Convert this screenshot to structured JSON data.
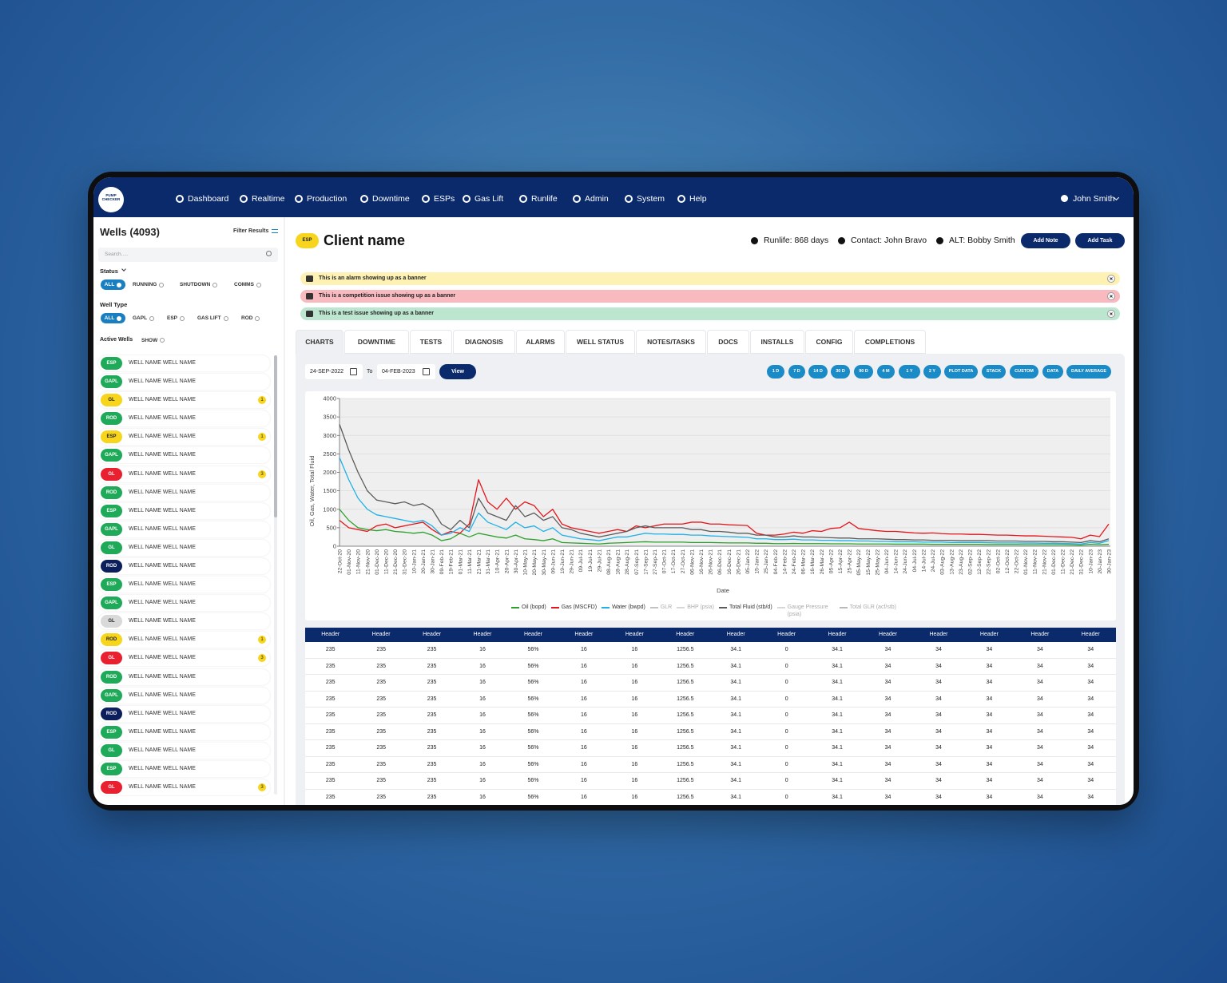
{
  "nav": {
    "logo": "PUMP CHECKER",
    "items": [
      "Dashboard",
      "Realtime",
      "Production",
      "Downtime",
      "ESPs",
      "Gas Lift",
      "Runlife",
      "Admin",
      "System",
      "Help"
    ],
    "user": "John Smith"
  },
  "sidebar": {
    "title": "Wells (4093)",
    "filter": "Filter Results",
    "search_placeholder": "Search.....",
    "status_label": "Status",
    "status_options": [
      "ALL",
      "RUNNING",
      "SHUTDOWN",
      "COMMS"
    ],
    "well_type_label": "Well Type",
    "well_type_options": [
      "ALL",
      "GAPL",
      "ESP",
      "GAS LIFT",
      "ROD"
    ],
    "active_wells_label": "Active Wells",
    "active_wells_option": "SHOW",
    "wells": [
      {
        "type": "ESP",
        "color": "#1faa59",
        "name": "WELL NAME WELL NAME"
      },
      {
        "type": "GAPL",
        "color": "#1faa59",
        "name": "WELL NAME WELL NAME"
      },
      {
        "type": "GL",
        "color": "#f7d51d",
        "name": "WELL NAME WELL NAME",
        "alerts": 1
      },
      {
        "type": "ROD",
        "color": "#1faa59",
        "name": "WELL NAME WELL NAME"
      },
      {
        "type": "ESP",
        "color": "#f7d51d",
        "name": "WELL NAME WELL NAME",
        "alerts": 1
      },
      {
        "type": "GAPL",
        "color": "#1faa59",
        "name": "WELL NAME WELL NAME"
      },
      {
        "type": "GL",
        "color": "#e8202f",
        "name": "WELL NAME WELL NAME",
        "alerts": 3
      },
      {
        "type": "ROD",
        "color": "#1faa59",
        "name": "WELL NAME WELL NAME"
      },
      {
        "type": "ESP",
        "color": "#1faa59",
        "name": "WELL NAME WELL NAME"
      },
      {
        "type": "GAPL",
        "color": "#1faa59",
        "name": "WELL NAME WELL NAME"
      },
      {
        "type": "GL",
        "color": "#1faa59",
        "name": "WELL NAME WELL NAME"
      },
      {
        "type": "ROD",
        "color": "#0b1f5c",
        "name": "WELL NAME WELL NAME"
      },
      {
        "type": "ESP",
        "color": "#1faa59",
        "name": "WELL NAME WELL NAME"
      },
      {
        "type": "GAPL",
        "color": "#1faa59",
        "name": "WELL NAME WELL NAME"
      },
      {
        "type": "GL",
        "color": "#d9d9d9",
        "name": "WELL NAME WELL NAME"
      },
      {
        "type": "ROD",
        "color": "#f7d51d",
        "name": "WELL NAME WELL NAME",
        "alerts": 1
      },
      {
        "type": "GL",
        "color": "#e8202f",
        "name": "WELL NAME WELL NAME",
        "alerts": 3
      },
      {
        "type": "ROD",
        "color": "#1faa59",
        "name": "WELL NAME WELL NAME"
      },
      {
        "type": "GAPL",
        "color": "#1faa59",
        "name": "WELL NAME WELL NAME"
      },
      {
        "type": "ROD",
        "color": "#0b1f5c",
        "name": "WELL NAME WELL NAME"
      },
      {
        "type": "ESP",
        "color": "#1faa59",
        "name": "WELL NAME WELL NAME"
      },
      {
        "type": "GL",
        "color": "#1faa59",
        "name": "WELL NAME WELL NAME"
      },
      {
        "type": "ESP",
        "color": "#1faa59",
        "name": "WELL NAME WELL NAME"
      },
      {
        "type": "GL",
        "color": "#e8202f",
        "name": "WELL NAME WELL NAME",
        "alerts": 3
      }
    ]
  },
  "header": {
    "badge": "ESP",
    "client": "Client name",
    "runlife": "Runlife: 868 days",
    "contact": "Contact: John Bravo",
    "alt": "ALT: Bobby Smith",
    "buttons": [
      "Add Note",
      "Add Task"
    ]
  },
  "banners": [
    {
      "text": "This is an alarm showing up as a banner",
      "color": "#fdf2b3"
    },
    {
      "text": "This is a competition issue showing up as a banner",
      "color": "#f8b9bf"
    },
    {
      "text": "This is a test issue showing up as a banner",
      "color": "#bce6d0"
    }
  ],
  "tabs": [
    "CHARTS",
    "DOWNTIME",
    "TESTS",
    "DIAGNOSIS",
    "ALARMS",
    "WELL STATUS",
    "NOTES/TASKS",
    "DOCS",
    "INSTALLS",
    "CONFIG",
    "COMPLETIONS"
  ],
  "controls": {
    "from": "24-SEP-2022",
    "to_label": "To",
    "to": "04-FEB-2023",
    "view": "View",
    "ranges": [
      "1 D",
      "7 D",
      "14 D",
      "30 D",
      "90 D",
      "4 M",
      "1 Y",
      "2 Y",
      "PLOT DATA",
      "STACK",
      "CUSTOM",
      "DATA",
      "DAILY AVERAGE"
    ]
  },
  "chart_data": {
    "type": "line",
    "xlabel": "Date",
    "ylabel": "Oil, Gas, Water, Total Fluid",
    "ylim": [
      0,
      4000
    ],
    "yticks": [
      0,
      500,
      1000,
      1500,
      2000,
      2500,
      3000,
      3500,
      4000
    ],
    "grid": true,
    "categories": [
      "22-Oct-20",
      "01-Nov-20",
      "11-Nov-20",
      "21-Nov-20",
      "01-Dec-20",
      "11-Dec-20",
      "21-Dec-20",
      "31-Dec-20",
      "10-Jan-21",
      "20-Jan-21",
      "30-Jan-21",
      "09-Feb-21",
      "19-Feb-21",
      "01-Mar-21",
      "11-Mar-21",
      "21-Mar-21",
      "31-Mar-21",
      "10-Apr-21",
      "20-Apr-21",
      "30-Apr-21",
      "10-May-21",
      "20-May-21",
      "30-May-21",
      "09-Jun-21",
      "19-Jun-21",
      "29-Jun-21",
      "09-Jul-21",
      "19-Jul-21",
      "29-Jul-21",
      "08-Aug-21",
      "18-Aug-21",
      "28-Aug-21",
      "07-Sep-21",
      "17-Sep-21",
      "27-Sep-21",
      "07-Oct-21",
      "17-Oct-21",
      "27-Oct-21",
      "06-Nov-21",
      "16-Nov-21",
      "26-Nov-21",
      "06-Dec-21",
      "16-Dec-21",
      "26-Dec-21",
      "05-Jan-22",
      "15-Jan-22",
      "25-Jan-22",
      "04-Feb-22",
      "14-Feb-22",
      "24-Feb-22",
      "06-Mar-22",
      "16-Mar-22",
      "26-Mar-22",
      "05-Apr-22",
      "15-Apr-22",
      "25-Apr-22",
      "05-May-22",
      "15-May-22",
      "25-May-22",
      "04-Jun-22",
      "14-Jun-22",
      "24-Jun-22",
      "04-Jul-22",
      "14-Jul-22",
      "24-Jul-22",
      "03-Aug-22",
      "13-Aug-22",
      "23-Aug-22",
      "02-Sep-22",
      "12-Sep-22",
      "22-Sep-22",
      "02-Oct-22",
      "12-Oct-22",
      "22-Oct-22",
      "01-Nov-22",
      "11-Nov-22",
      "21-Nov-22",
      "01-Dec-22",
      "11-Dec-22",
      "21-Dec-22",
      "31-Dec-22",
      "10-Jan-23",
      "20-Jan-23",
      "30-Jan-23"
    ],
    "series": [
      {
        "name": "Oil (bopd)",
        "color": "#2ca02c",
        "values": [
          1000,
          700,
          500,
          450,
          420,
          450,
          400,
          380,
          350,
          380,
          300,
          150,
          200,
          350,
          250,
          350,
          300,
          250,
          220,
          300,
          200,
          180,
          150,
          200,
          100,
          90,
          80,
          70,
          60,
          80,
          90,
          100,
          110,
          120,
          110,
          110,
          110,
          110,
          100,
          100,
          100,
          95,
          90,
          90,
          90,
          80,
          80,
          70,
          70,
          75,
          70,
          70,
          70,
          65,
          65,
          65,
          60,
          60,
          60,
          60,
          55,
          55,
          55,
          55,
          50,
          50,
          50,
          50,
          50,
          50,
          45,
          45,
          45,
          45,
          40,
          40,
          40,
          40,
          40,
          35,
          30,
          50,
          40,
          50
        ]
      },
      {
        "name": "Gas (MSCFD)",
        "color": "#e3161c",
        "values": [
          700,
          500,
          450,
          400,
          550,
          600,
          500,
          550,
          600,
          650,
          450,
          300,
          400,
          350,
          600,
          1800,
          1200,
          1000,
          1300,
          1000,
          1200,
          1100,
          800,
          1000,
          600,
          500,
          450,
          400,
          350,
          400,
          450,
          400,
          550,
          500,
          550,
          600,
          600,
          600,
          650,
          650,
          600,
          600,
          580,
          570,
          560,
          350,
          300,
          300,
          330,
          380,
          350,
          420,
          400,
          480,
          500,
          650,
          480,
          450,
          420,
          400,
          400,
          380,
          360,
          350,
          360,
          340,
          330,
          330,
          320,
          320,
          310,
          300,
          300,
          290,
          280,
          280,
          270,
          260,
          250,
          240,
          200,
          300,
          260,
          600
        ]
      },
      {
        "name": "Water (bwpd)",
        "color": "#1fb1e6",
        "values": [
          2400,
          1800,
          1300,
          1000,
          850,
          800,
          750,
          700,
          650,
          700,
          550,
          300,
          350,
          500,
          400,
          900,
          650,
          550,
          450,
          650,
          500,
          550,
          400,
          500,
          300,
          250,
          200,
          180,
          150,
          200,
          250,
          250,
          300,
          350,
          330,
          330,
          320,
          320,
          300,
          300,
          280,
          270,
          260,
          250,
          240,
          200,
          200,
          180,
          180,
          190,
          170,
          170,
          160,
          160,
          150,
          150,
          140,
          140,
          130,
          130,
          120,
          120,
          120,
          110,
          110,
          110,
          100,
          100,
          100,
          100,
          95,
          90,
          90,
          90,
          85,
          85,
          80,
          80,
          75,
          70,
          60,
          100,
          80,
          150
        ]
      },
      {
        "name": "GLR",
        "color": "#9a9a9a",
        "visible": false
      },
      {
        "name": "BHP (psia)",
        "color": "#bdbdbd",
        "visible": false
      },
      {
        "name": "Total Fluid (stb/d)",
        "color": "#5c5c5c",
        "values": [
          3300,
          2600,
          2000,
          1500,
          1250,
          1200,
          1150,
          1200,
          1100,
          1150,
          1000,
          600,
          450,
          700,
          500,
          1300,
          900,
          800,
          700,
          1100,
          800,
          900,
          700,
          800,
          500,
          450,
          350,
          300,
          250,
          300,
          350,
          400,
          500,
          550,
          500,
          500,
          500,
          500,
          450,
          450,
          400,
          400,
          380,
          350,
          350,
          300,
          300,
          250,
          250,
          280,
          250,
          250,
          240,
          230,
          220,
          220,
          200,
          200,
          200,
          190,
          180,
          180,
          170,
          170,
          160,
          160,
          160,
          150,
          150,
          150,
          150,
          140,
          140,
          140,
          130,
          130,
          130,
          120,
          120,
          110,
          100,
          150,
          120,
          200
        ]
      },
      {
        "name": "Gauge Pressure (psia)",
        "color": "#bdbdbd",
        "visible": false
      },
      {
        "name": "Total GLR (acf/stb)",
        "color": "#8a8a8a",
        "visible": false
      }
    ]
  },
  "table": {
    "headers": [
      "Header",
      "Header",
      "Header",
      "Header",
      "Header",
      "Header",
      "Header",
      "Header",
      "Header",
      "Header",
      "Header",
      "Header",
      "Header",
      "Header",
      "Header",
      "Header"
    ],
    "rows": [
      [
        235,
        235,
        235,
        16,
        "56%",
        16,
        16,
        1256.5,
        34.1,
        0,
        34.1,
        34,
        34,
        34,
        34,
        34
      ],
      [
        235,
        235,
        235,
        16,
        "56%",
        16,
        16,
        1256.5,
        34.1,
        0,
        34.1,
        34,
        34,
        34,
        34,
        34
      ],
      [
        235,
        235,
        235,
        16,
        "56%",
        16,
        16,
        1256.5,
        34.1,
        0,
        34.1,
        34,
        34,
        34,
        34,
        34
      ],
      [
        235,
        235,
        235,
        16,
        "56%",
        16,
        16,
        1256.5,
        34.1,
        0,
        34.1,
        34,
        34,
        34,
        34,
        34
      ],
      [
        235,
        235,
        235,
        16,
        "56%",
        16,
        16,
        1256.5,
        34.1,
        0,
        34.1,
        34,
        34,
        34,
        34,
        34
      ],
      [
        235,
        235,
        235,
        16,
        "56%",
        16,
        16,
        1256.5,
        34.1,
        0,
        34.1,
        34,
        34,
        34,
        34,
        34
      ],
      [
        235,
        235,
        235,
        16,
        "56%",
        16,
        16,
        1256.5,
        34.1,
        0,
        34.1,
        34,
        34,
        34,
        34,
        34
      ],
      [
        235,
        235,
        235,
        16,
        "56%",
        16,
        16,
        1256.5,
        34.1,
        0,
        34.1,
        34,
        34,
        34,
        34,
        34
      ],
      [
        235,
        235,
        235,
        16,
        "56%",
        16,
        16,
        1256.5,
        34.1,
        0,
        34.1,
        34,
        34,
        34,
        34,
        34
      ],
      [
        235,
        235,
        235,
        16,
        "56%",
        16,
        16,
        1256.5,
        34.1,
        0,
        34.1,
        34,
        34,
        34,
        34,
        34
      ]
    ]
  }
}
